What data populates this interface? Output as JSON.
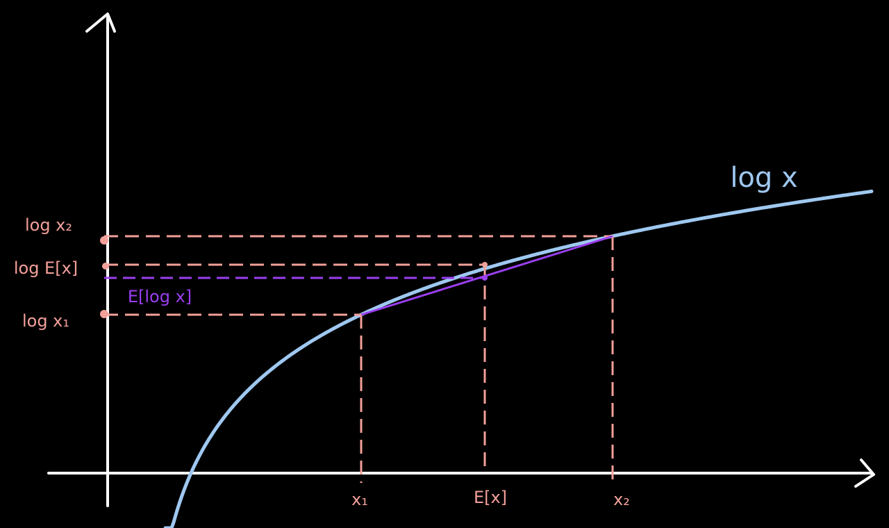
{
  "curve_label": "log x",
  "y_labels": {
    "top": "log x₂",
    "middle": "log E[x]",
    "bottom": "log x₁"
  },
  "mean_of_log_label": "E[log x]",
  "x_labels": {
    "left": "x₁",
    "middle": "E[x]",
    "right": "x₂"
  }
}
